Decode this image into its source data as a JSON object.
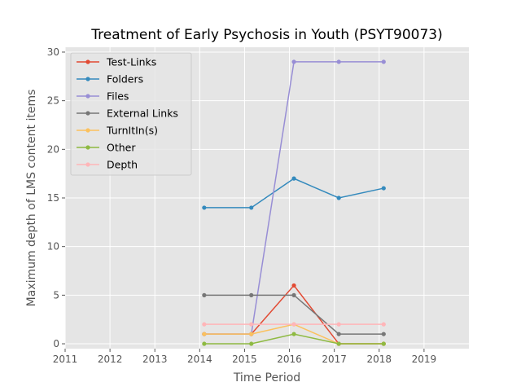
{
  "chart_data": {
    "type": "line",
    "title": "Treatment of Early Psychosis in Youth (PSYT90073)",
    "xlabel": "Time Period",
    "ylabel": "Maximum depth of LMS content items",
    "xlim": [
      2011,
      2020
    ],
    "ylim": [
      -0.5,
      30.5
    ],
    "xticks": [
      2011,
      2012,
      2013,
      2014,
      2015,
      2016,
      2017,
      2018,
      2019
    ],
    "yticks": [
      0,
      5,
      10,
      15,
      20,
      25,
      30
    ],
    "grid": true,
    "legend_position": "top-left",
    "x": [
      2014.1,
      2015.15,
      2016.1,
      2017.1,
      2018.1
    ],
    "series": [
      {
        "name": "Test-Links",
        "color": "#e24a33",
        "values": [
          1,
          1,
          6,
          0,
          0
        ]
      },
      {
        "name": "Folders",
        "color": "#348abd",
        "values": [
          14,
          14,
          17,
          15,
          16
        ]
      },
      {
        "name": "Files",
        "color": "#988ed5",
        "values": [
          1,
          1,
          29,
          29,
          29
        ]
      },
      {
        "name": "External Links",
        "color": "#777777",
        "values": [
          5,
          5,
          5,
          1,
          1
        ]
      },
      {
        "name": "TurnItIn(s)",
        "color": "#fbc15e",
        "values": [
          1,
          1,
          2,
          0,
          0
        ]
      },
      {
        "name": "Other",
        "color": "#8eba42",
        "values": [
          0,
          0,
          1,
          0,
          0
        ]
      },
      {
        "name": "Depth",
        "color": "#ffb5b8",
        "values": [
          2,
          2,
          2,
          2,
          2
        ]
      }
    ]
  }
}
